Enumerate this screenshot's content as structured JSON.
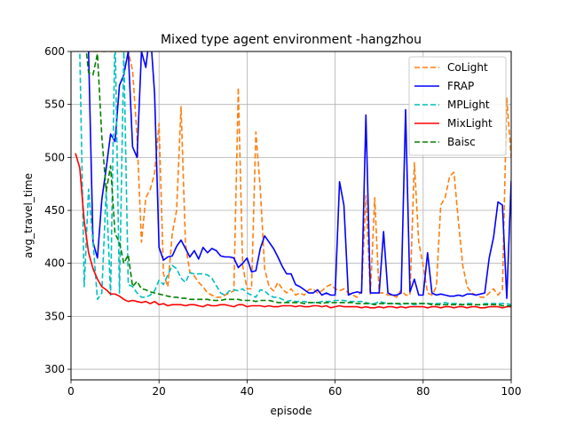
{
  "chart_data": {
    "type": "line",
    "title": "Mixed type agent environment -hangzhou",
    "xlabel": "episode",
    "ylabel": "avg_travel_time",
    "xlim": [
      0,
      100
    ],
    "ylim": [
      290,
      600
    ],
    "xticks": [
      0,
      20,
      40,
      60,
      80,
      100
    ],
    "yticks": [
      300,
      350,
      400,
      450,
      500,
      550,
      600
    ],
    "grid": true,
    "legend_position": "top-right",
    "series": [
      {
        "name": "CoLight",
        "color": "#ff7f0e",
        "dash": "6,3",
        "x": [
          1,
          2,
          3,
          4,
          5,
          6,
          7,
          8,
          9,
          10,
          11,
          12,
          13,
          14,
          15,
          16,
          17,
          18,
          19,
          20,
          21,
          22,
          23,
          24,
          25,
          26,
          27,
          28,
          29,
          30,
          31,
          32,
          33,
          34,
          35,
          36,
          37,
          38,
          39,
          40,
          41,
          42,
          43,
          44,
          45,
          46,
          47,
          48,
          49,
          50,
          51,
          52,
          53,
          54,
          55,
          56,
          57,
          58,
          59,
          60,
          61,
          62,
          63,
          64,
          65,
          66,
          67,
          68,
          69,
          70,
          71,
          72,
          73,
          74,
          75,
          76,
          77,
          78,
          79,
          80,
          81,
          82,
          83,
          84,
          85,
          86,
          87,
          88,
          89,
          90,
          91,
          92,
          93,
          94,
          95,
          96,
          97,
          98,
          99,
          100
        ],
        "y": [
          620,
          620,
          610,
          600,
          600,
          600,
          600,
          600,
          600,
          600,
          600,
          600,
          600,
          582,
          520,
          420,
          462,
          470,
          485,
          532,
          390,
          378,
          428,
          450,
          548,
          418,
          392,
          388,
          382,
          378,
          372,
          370,
          368,
          368,
          370,
          372,
          374,
          566,
          398,
          376,
          376,
          524,
          470,
          395,
          378,
          374,
          382,
          376,
          372,
          376,
          370,
          372,
          370,
          375,
          376,
          372,
          374,
          378,
          380,
          376,
          374,
          376,
          372,
          370,
          368,
          374,
          464,
          370,
          462,
          372,
          372,
          370,
          370,
          368,
          375,
          370,
          370,
          495,
          420,
          398,
          372,
          370,
          378,
          455,
          462,
          482,
          486,
          440,
          398,
          378,
          372,
          370,
          368,
          368,
          372,
          376,
          370,
          375,
          556,
          500
        ]
      },
      {
        "name": "FRAP",
        "color": "#0000ff",
        "dash": "",
        "x": [
          1,
          2,
          3,
          4,
          5,
          6,
          7,
          8,
          9,
          10,
          11,
          12,
          13,
          14,
          15,
          16,
          17,
          18,
          19,
          20,
          21,
          22,
          23,
          24,
          25,
          26,
          27,
          28,
          29,
          30,
          31,
          32,
          33,
          34,
          35,
          36,
          37,
          38,
          39,
          40,
          41,
          42,
          43,
          44,
          45,
          46,
          47,
          48,
          49,
          50,
          51,
          52,
          53,
          54,
          55,
          56,
          57,
          58,
          59,
          60,
          61,
          62,
          63,
          64,
          65,
          66,
          67,
          68,
          69,
          70,
          71,
          72,
          73,
          74,
          75,
          76,
          77,
          78,
          79,
          80,
          81,
          82,
          83,
          84,
          85,
          86,
          87,
          88,
          89,
          90,
          91,
          92,
          93,
          94,
          95,
          96,
          97,
          98,
          99,
          100
        ],
        "y": [
          620,
          620,
          620,
          600,
          420,
          405,
          460,
          490,
          522,
          515,
          568,
          578,
          600,
          510,
          500,
          600,
          585,
          620,
          560,
          415,
          403,
          406,
          407,
          416,
          422,
          414,
          406,
          412,
          404,
          415,
          410,
          414,
          412,
          407,
          406,
          406,
          405,
          396,
          400,
          405,
          392,
          393,
          414,
          426,
          420,
          414,
          406,
          397,
          390,
          390,
          380,
          378,
          375,
          372,
          372,
          375,
          370,
          372,
          370,
          370,
          477,
          455,
          370,
          372,
          373,
          372,
          540,
          372,
          372,
          372,
          430,
          372,
          370,
          370,
          372,
          545,
          373,
          385,
          370,
          370,
          410,
          372,
          370,
          371,
          370,
          369,
          369,
          370,
          369,
          371,
          371,
          370,
          371,
          372,
          405,
          425,
          458,
          455,
          367,
          478
        ]
      },
      {
        "name": "MPLight",
        "color": "#00bfbf",
        "dash": "6,3",
        "x": [
          1,
          2,
          3,
          4,
          5,
          6,
          7,
          8,
          9,
          10,
          11,
          12,
          13,
          14,
          15,
          16,
          17,
          18,
          19,
          20,
          21,
          22,
          23,
          24,
          25,
          26,
          27,
          28,
          29,
          30,
          31,
          32,
          33,
          34,
          35,
          36,
          37,
          38,
          39,
          40,
          41,
          42,
          43,
          44,
          45,
          46,
          47,
          48,
          49,
          50,
          51,
          52,
          53,
          54,
          55,
          56,
          57,
          58,
          59,
          60,
          61,
          62,
          63,
          64,
          65,
          66,
          67,
          68,
          69,
          70,
          71,
          72,
          73,
          74,
          75,
          76,
          77,
          78,
          79,
          80,
          81,
          82,
          83,
          84,
          85,
          86,
          87,
          88,
          89,
          90,
          91,
          92,
          93,
          94,
          95,
          96,
          97,
          98,
          99,
          100
        ],
        "y": [
          620,
          600,
          378,
          470,
          420,
          366,
          372,
          470,
          370,
          620,
          372,
          600,
          380,
          378,
          372,
          368,
          368,
          370,
          374,
          384,
          380,
          389,
          398,
          395,
          386,
          382,
          391,
          390,
          390,
          390,
          389,
          386,
          379,
          372,
          370,
          374,
          375,
          374,
          376,
          372,
          370,
          368,
          375,
          374,
          370,
          368,
          368,
          366,
          364,
          365,
          364,
          364,
          364,
          363,
          363,
          363,
          364,
          364,
          364,
          365,
          365,
          365,
          364,
          364,
          364,
          364,
          363,
          362,
          362,
          364,
          363,
          362,
          362,
          362,
          361,
          362,
          362,
          361,
          362,
          362,
          362,
          362,
          362,
          362,
          363,
          362,
          362,
          362,
          361,
          362,
          362,
          361,
          361,
          362,
          362,
          362,
          362,
          362,
          362,
          361
        ]
      },
      {
        "name": "MixLight",
        "color": "#ff0000",
        "dash": "",
        "x": [
          1,
          2,
          3,
          4,
          5,
          6,
          7,
          8,
          9,
          10,
          11,
          12,
          13,
          14,
          15,
          16,
          17,
          18,
          19,
          20,
          21,
          22,
          23,
          24,
          25,
          26,
          27,
          28,
          29,
          30,
          31,
          32,
          33,
          34,
          35,
          36,
          37,
          38,
          39,
          40,
          41,
          42,
          43,
          44,
          45,
          46,
          47,
          48,
          49,
          50,
          51,
          52,
          53,
          54,
          55,
          56,
          57,
          58,
          59,
          60,
          61,
          62,
          63,
          64,
          65,
          66,
          67,
          68,
          69,
          70,
          71,
          72,
          73,
          74,
          75,
          76,
          77,
          78,
          79,
          80,
          81,
          82,
          83,
          84,
          85,
          86,
          87,
          88,
          89,
          90,
          91,
          92,
          93,
          94,
          95,
          96,
          97,
          98,
          99,
          100
        ],
        "y": [
          504,
          490,
          440,
          410,
          395,
          385,
          378,
          375,
          371,
          371,
          369,
          366,
          364,
          365,
          364,
          363,
          364,
          362,
          364,
          361,
          362,
          360,
          361,
          361,
          361,
          360,
          361,
          361,
          360,
          359,
          361,
          360,
          360,
          361,
          361,
          360,
          359,
          361,
          361,
          359,
          360,
          360,
          360,
          359,
          360,
          359,
          359,
          360,
          360,
          360,
          359,
          360,
          359,
          359,
          360,
          360,
          359,
          360,
          358,
          359,
          360,
          359,
          359,
          359,
          359,
          358,
          359,
          358,
          358,
          359,
          358,
          359,
          359,
          358,
          359,
          358,
          359,
          359,
          359,
          359,
          358,
          359,
          359,
          358,
          359,
          359,
          358,
          359,
          359,
          358,
          359,
          359,
          358,
          358,
          359,
          359,
          359,
          358,
          359,
          359
        ]
      },
      {
        "name": "Baisc",
        "color": "#008000",
        "dash": "6,3",
        "x": [
          1,
          2,
          3,
          4,
          5,
          6,
          7,
          8,
          9,
          10,
          11,
          12,
          13,
          14,
          15,
          16,
          17,
          18,
          19,
          20,
          21,
          22,
          23,
          24,
          25,
          26,
          27,
          28,
          29,
          30,
          31,
          32,
          33,
          34,
          35,
          36,
          37,
          38,
          39,
          40,
          41,
          42,
          43,
          44,
          45,
          46,
          47,
          48,
          49,
          50,
          51,
          52,
          53,
          54,
          55,
          56,
          57,
          58,
          59,
          60,
          61,
          62,
          63,
          64,
          65,
          66,
          67,
          68,
          69,
          70,
          71,
          72,
          73,
          74,
          75,
          76,
          77,
          78,
          79,
          80,
          81,
          82,
          83,
          84,
          85,
          86,
          87,
          88,
          89,
          90,
          91,
          92,
          93,
          94,
          95,
          96,
          97,
          98,
          99,
          100
        ],
        "y": [
          620,
          620,
          620,
          580,
          578,
          598,
          520,
          468,
          492,
          428,
          420,
          400,
          408,
          378,
          383,
          376,
          375,
          373,
          372,
          371,
          370,
          369,
          368,
          368,
          367,
          367,
          366,
          366,
          366,
          366,
          366,
          365,
          365,
          365,
          366,
          366,
          366,
          366,
          365,
          365,
          365,
          364,
          365,
          365,
          365,
          364,
          363,
          363,
          363,
          363,
          363,
          363,
          362,
          363,
          363,
          363,
          362,
          363,
          363,
          363,
          363,
          363,
          363,
          363,
          362,
          362,
          362,
          362,
          361,
          362,
          362,
          362,
          362,
          362,
          362,
          362,
          362,
          362,
          362,
          362,
          362,
          361,
          361,
          361,
          361,
          361,
          361,
          361,
          361,
          361,
          361,
          361,
          361,
          361,
          361,
          361,
          361,
          360,
          360,
          360
        ]
      }
    ]
  }
}
